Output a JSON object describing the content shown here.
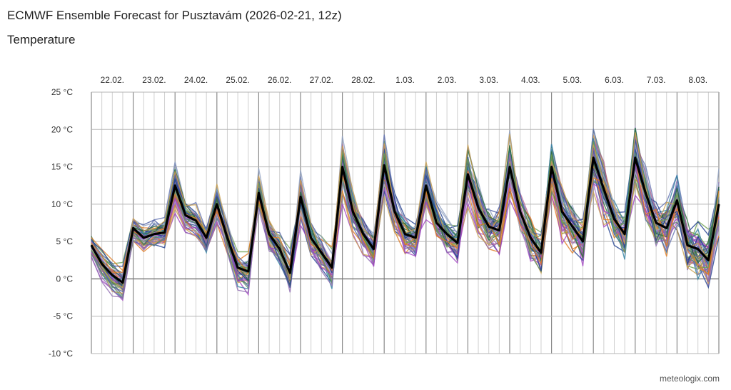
{
  "title": "ECMWF Ensemble Forecast for Pusztavám (2026-02-21, 12z)",
  "subtitle": "Temperature",
  "credit": "meteologix.com",
  "chart_data": {
    "type": "line",
    "ylim": [
      -10,
      25
    ],
    "y_ticks": [
      {
        "value": 25,
        "label": "25 °C"
      },
      {
        "value": 20,
        "label": "20 °C"
      },
      {
        "value": 15,
        "label": "15 °C"
      },
      {
        "value": 10,
        "label": "10 °C"
      },
      {
        "value": 5,
        "label": "5 °C"
      },
      {
        "value": 0,
        "label": "0 °C"
      },
      {
        "value": -5,
        "label": "-5 °C"
      },
      {
        "value": -10,
        "label": "-10 °C"
      }
    ],
    "x_range": [
      0,
      15
    ],
    "days": [
      "22.02.",
      "23.02.",
      "24.02.",
      "25.02.",
      "26.02.",
      "27.02.",
      "28.02.",
      "1.03.",
      "2.03.",
      "3.03.",
      "4.03.",
      "5.03.",
      "6.03.",
      "7.03.",
      "8.03."
    ],
    "grid": true,
    "mean_color": "#000000",
    "member_colors": [
      "#a040c0",
      "#8e6ab0",
      "#4a5aa0",
      "#1f3f8f",
      "#2d6b3a",
      "#6fa050",
      "#e07b20",
      "#c9a050",
      "#6070b0",
      "#b06090",
      "#90a0c0",
      "#3080a0",
      "#b8a8d0",
      "#5a8a6a"
    ],
    "mean": {
      "name": "Mean",
      "x": [
        0.0,
        0.25,
        0.5,
        0.75,
        1.0,
        1.25,
        1.5,
        1.75,
        2.0,
        2.25,
        2.5,
        2.75,
        3.0,
        3.25,
        3.5,
        3.75,
        4.0,
        4.25,
        4.5,
        4.75,
        5.0,
        5.25,
        5.5,
        5.75,
        6.0,
        6.25,
        6.5,
        6.75,
        7.0,
        7.25,
        7.5,
        7.75,
        8.0,
        8.25,
        8.5,
        8.75,
        9.0,
        9.25,
        9.5,
        9.75,
        10.0,
        10.25,
        10.5,
        10.75,
        11.0,
        11.25,
        11.5,
        11.75,
        12.0,
        12.25,
        12.5,
        12.75,
        13.0,
        13.25,
        13.5,
        13.75,
        14.0,
        14.25,
        14.5,
        14.75,
        15.0
      ],
      "values": [
        4.5,
        2.0,
        0.5,
        -0.5,
        6.8,
        5.5,
        6.0,
        6.2,
        12.5,
        8.5,
        7.8,
        5.5,
        10.0,
        5.5,
        1.5,
        1.0,
        11.5,
        6.0,
        4.0,
        0.8,
        11.0,
        5.5,
        3.5,
        1.5,
        15.0,
        9.0,
        6.0,
        4.0,
        15.2,
        9.0,
        6.0,
        5.5,
        12.5,
        7.5,
        6.0,
        4.8,
        14.0,
        9.5,
        7.0,
        6.5,
        15.0,
        9.0,
        5.5,
        3.5,
        15.0,
        9.0,
        7.0,
        5.0,
        16.2,
        12.0,
        8.0,
        6.0,
        16.2,
        11.5,
        7.5,
        6.8,
        10.5,
        4.5,
        4.0,
        2.5,
        10.0
      ]
    }
  }
}
